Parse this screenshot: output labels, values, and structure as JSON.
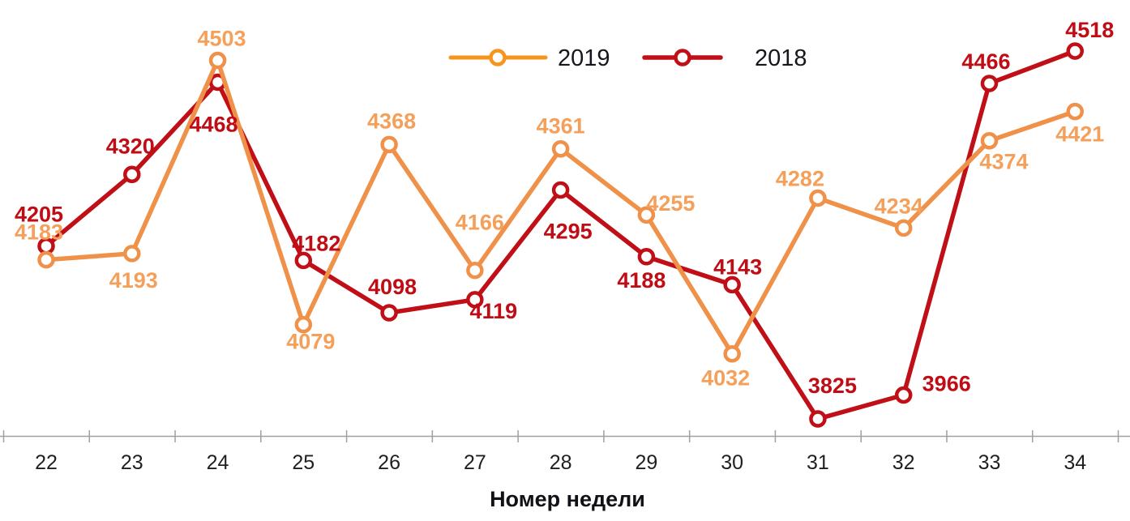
{
  "chart_data": {
    "type": "line",
    "title": "",
    "xlabel": "Номер недели",
    "ylabel": "",
    "x_categories": [
      "22",
      "23",
      "24",
      "25",
      "26",
      "27",
      "28",
      "29",
      "30",
      "31",
      "32",
      "33",
      "34"
    ],
    "series": [
      {
        "name": "2019",
        "color": "#F0914A",
        "label_color": "#F5A05A",
        "legend_color": "#F7941D",
        "values": [
          4183,
          4193,
          4503,
          4079,
          4368,
          4166,
          4361,
          4255,
          4032,
          4282,
          4234,
          4374,
          4421
        ],
        "label_offsets": [
          [
            -9,
            -25
          ],
          [
            2,
            42
          ],
          [
            5,
            -18
          ],
          [
            9,
            30
          ],
          [
            3,
            -20
          ],
          [
            6,
            -50
          ],
          [
            0,
            -19
          ],
          [
            30,
            -5
          ],
          [
            -8,
            39
          ],
          [
            -22,
            -15
          ],
          [
            -6,
            -18
          ],
          [
            18,
            35
          ],
          [
            6,
            37
          ]
        ]
      },
      {
        "name": "2018",
        "color": "#C00F16",
        "label_color": "#C00D15",
        "legend_color": "#C00F16",
        "values": [
          4205,
          4320,
          4468,
          4182,
          4098,
          4119,
          4295,
          4188,
          4143,
          3825,
          3966,
          4466,
          4518
        ],
        "label_offsets": [
          [
            -9,
            -30
          ],
          [
            -2,
            -26
          ],
          [
            -5,
            61
          ],
          [
            16,
            -12
          ],
          [
            4,
            -23
          ],
          [
            23,
            23
          ],
          [
            9,
            60
          ],
          [
            -6,
            38
          ],
          [
            7,
            -13
          ],
          [
            18,
            -32
          ],
          [
            53,
            -5
          ],
          [
            -4,
            -18
          ],
          [
            18,
            -17
          ]
        ]
      }
    ],
    "ylim": [
      3780,
      4560
    ],
    "grid": false,
    "legend_position": "top-center",
    "marker": "open-circle",
    "colors": {
      "axis": "#A0A0A0",
      "tick_labels": "#1F1F1F",
      "axis_title": "#111118",
      "legend_text": "#16161E",
      "background": "#FFFFFF"
    }
  }
}
